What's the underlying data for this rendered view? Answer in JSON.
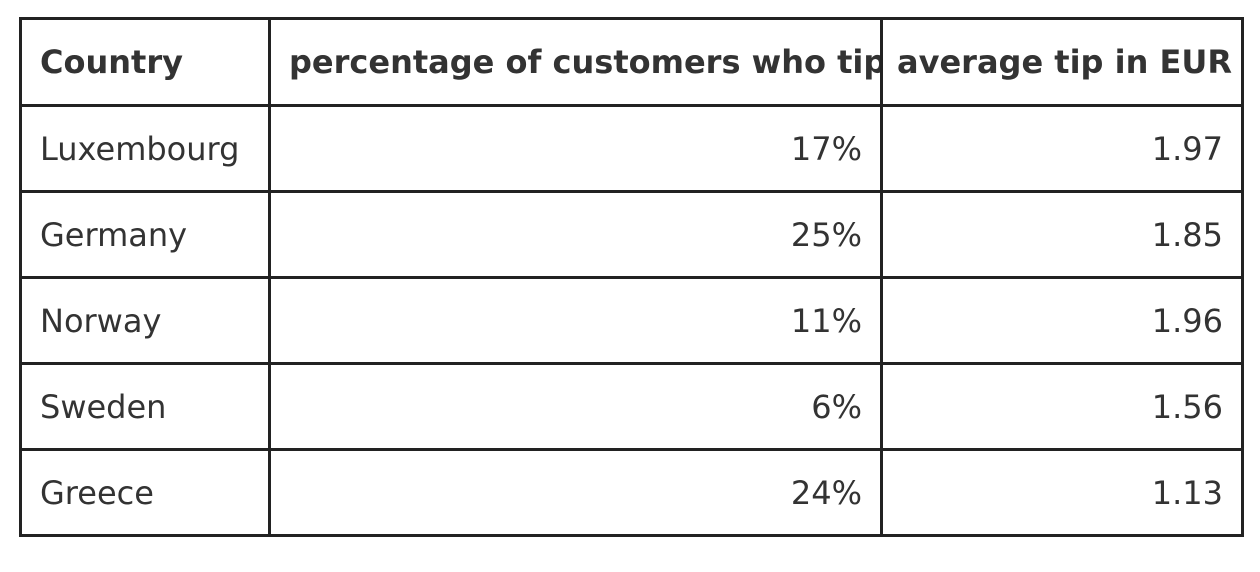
{
  "table": {
    "header": [
      "Country",
      "percentage of customers who tip",
      "average tip in EUR"
    ],
    "rows": [
      [
        "Luxembourg",
        "17%",
        "1.97"
      ],
      [
        "Germany",
        "25%",
        "1.85"
      ],
      [
        "Norway",
        "11%",
        "1.96"
      ],
      [
        "Sweden",
        "6%",
        "1.56"
      ],
      [
        "Greece",
        "24%",
        "1.13"
      ]
    ]
  }
}
